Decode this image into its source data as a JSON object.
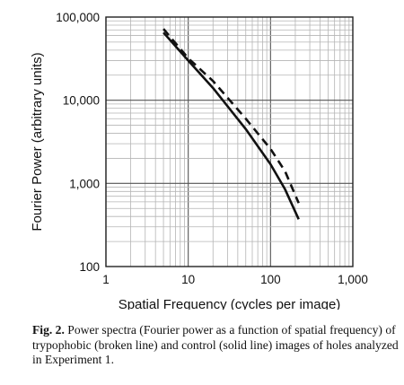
{
  "chart_data": {
    "type": "line",
    "title": "",
    "xlabel": "Spatial Frequency (cycles per image)",
    "ylabel": "Fourier Power (arbitrary units)",
    "x_scale": "log",
    "y_scale": "log",
    "xlim": [
      1,
      1000
    ],
    "ylim": [
      100,
      100000
    ],
    "x_ticks": [
      "1",
      "10",
      "100",
      "1,000"
    ],
    "y_ticks": [
      "100",
      "1,000",
      "10,000",
      "100,000"
    ],
    "grid": true,
    "legend": "none",
    "series": [
      {
        "style": "dashed",
        "color": "#111111",
        "x": [
          5,
          10,
          20,
          50,
          100,
          150,
          220
        ],
        "y": [
          72000,
          32000,
          17000,
          6000,
          2600,
          1400,
          580
        ]
      },
      {
        "style": "solid",
        "color": "#111111",
        "x": [
          5,
          10,
          20,
          50,
          100,
          150,
          220
        ],
        "y": [
          65000,
          30000,
          14000,
          4500,
          1700,
          850,
          370
        ]
      }
    ]
  },
  "caption": {
    "label": "Fig. 2.",
    "text": "Power spectra (Fourier power as a function of spatial frequency) of trypophobic (broken line) and control (solid line) images of holes analyzed in Experiment 1."
  }
}
